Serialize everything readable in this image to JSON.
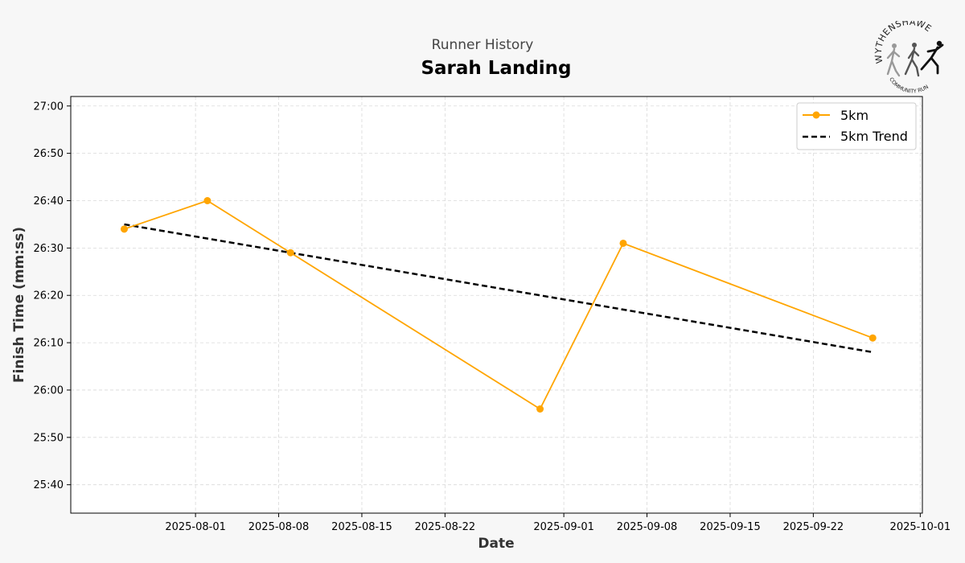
{
  "suptitle": "Runner History",
  "logo_text": {
    "top": "WYTHENSHAWE",
    "bottom": "COMMUNITY RUN"
  },
  "colors": {
    "series": "#FFA500",
    "trend": "#000000",
    "background": "#f7f7f7",
    "plot_background": "#ffffff"
  },
  "chart_data": {
    "type": "line",
    "title": "Sarah Landing",
    "xlabel": "Date",
    "ylabel": "Finish Time (mm:ss)",
    "x_ticks": [
      "2025-08-01",
      "2025-08-08",
      "2025-08-15",
      "2025-08-22",
      "2025-09-01",
      "2025-09-08",
      "2025-09-15",
      "2025-09-22",
      "2025-10-01"
    ],
    "y_ticks": [
      "25:40",
      "25:50",
      "26:00",
      "26:10",
      "26:20",
      "26:30",
      "26:40",
      "26:50",
      "27:00"
    ],
    "xlim": [
      "2025-07-22",
      "2025-10-01"
    ],
    "ylim": [
      "25:34",
      "27:02"
    ],
    "grid": true,
    "legend_position": "top-right",
    "series": [
      {
        "name": "5km",
        "style": "solid-line-with-markers",
        "color": "#FFA500",
        "x": [
          "2025-07-26",
          "2025-08-02",
          "2025-08-09",
          "2025-08-30",
          "2025-09-06",
          "2025-09-27"
        ],
        "y": [
          "26:34",
          "26:40",
          "26:29",
          "25:56",
          "26:31",
          "26:11"
        ]
      },
      {
        "name": "5km Trend",
        "style": "dashed-line",
        "color": "#000000",
        "x": [
          "2025-07-26",
          "2025-09-27"
        ],
        "y": [
          "26:35",
          "26:08"
        ]
      }
    ]
  }
}
